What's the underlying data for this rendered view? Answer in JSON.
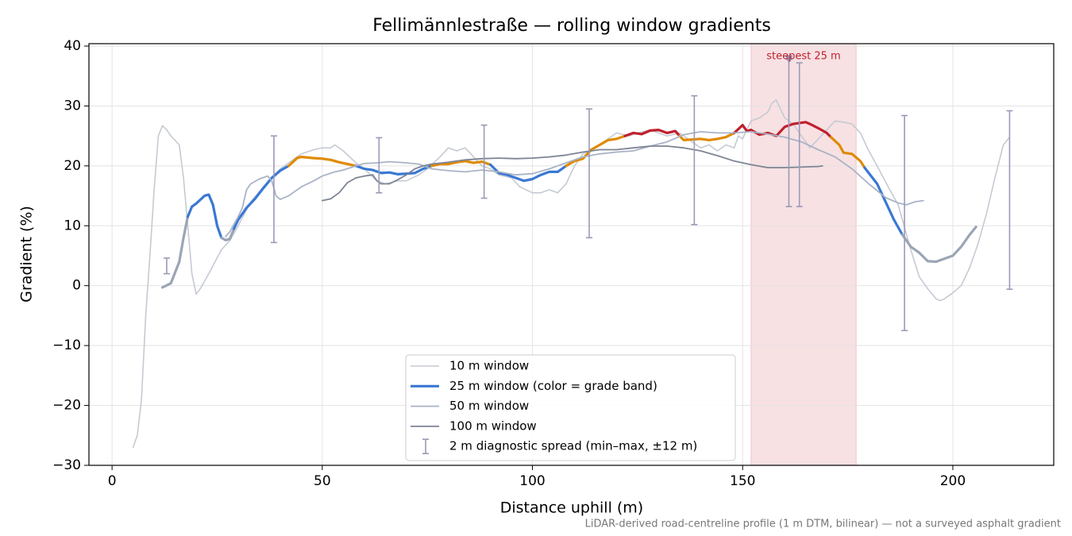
{
  "chart_data": {
    "type": "line",
    "title": "Fellimännlestraße — rolling window gradients",
    "x_label": "Distance uphill (m)",
    "y_label": "Gradient (%)",
    "footnote": "LiDAR-derived road-centreline profile (1 m DTM, bilinear) — not a surveyed asphalt gradient",
    "xlim": [
      -5.5,
      224
    ],
    "ylim": [
      -30,
      40.4
    ],
    "xticks": [
      0,
      50,
      100,
      150,
      200
    ],
    "yticks": [
      {
        "value": -30,
        "label": "−30"
      },
      {
        "value": -20,
        "label": "−20"
      },
      {
        "value": -10,
        "label": "−10"
      },
      0,
      10,
      20,
      30,
      40
    ],
    "grid": true,
    "legend": "lower center",
    "series": [
      {
        "name": "10 m window",
        "color": "#c5cad3",
        "x": [
          5,
          6,
          7,
          8,
          9,
          10,
          11,
          12,
          13,
          14,
          16,
          17,
          18,
          19,
          20,
          21,
          23,
          26,
          28,
          30,
          33,
          36,
          38,
          40,
          42,
          45,
          48,
          50,
          52,
          53,
          55,
          58,
          60,
          63,
          65,
          68,
          70,
          73,
          75,
          78,
          80,
          82,
          84,
          86,
          88,
          90,
          92,
          95,
          97,
          100,
          102,
          104,
          106,
          108,
          110,
          112,
          115,
          118,
          120,
          123,
          125,
          128,
          130,
          132,
          135,
          138,
          140,
          142,
          144,
          146,
          148,
          149,
          150,
          152,
          154,
          156,
          157,
          158,
          159,
          160,
          162,
          164,
          166,
          168,
          170,
          172,
          174,
          176,
          178,
          180,
          182,
          185,
          187,
          188,
          190,
          192,
          194,
          196,
          197,
          198,
          200,
          202,
          204,
          206,
          208,
          210,
          212,
          213.5
        ],
        "values": [
          -27,
          -25,
          -19,
          -5,
          5,
          16,
          25,
          26.7,
          26,
          25,
          23.5,
          18,
          10,
          2,
          -1.4,
          -0.5,
          2,
          6,
          7.5,
          10,
          14,
          16.5,
          18,
          19.5,
          20.5,
          22,
          22.7,
          23,
          23,
          23.5,
          22.5,
          20.5,
          19.5,
          17.5,
          17,
          17.5,
          17.5,
          18.5,
          19.5,
          21.5,
          23,
          22.5,
          23,
          21.5,
          20,
          19.5,
          18.5,
          18,
          16.5,
          15.5,
          15.5,
          16,
          15.5,
          17,
          20,
          22,
          23,
          24.5,
          25.5,
          25,
          25.5,
          26,
          25.5,
          25,
          25.5,
          24,
          23,
          23.5,
          22.5,
          23.5,
          23,
          25,
          24.5,
          27.5,
          28,
          29,
          30.5,
          31,
          29.5,
          28,
          27,
          25,
          23,
          24.5,
          26,
          27.5,
          27.3,
          27,
          25.5,
          22.5,
          20,
          16,
          13.5,
          11,
          6,
          1.5,
          -0.5,
          -2.2,
          -2.5,
          -2.2,
          -1.2,
          0,
          3,
          7,
          12,
          18,
          23.5,
          24.8
        ]
      },
      {
        "name": "25 m window (color = grade band)",
        "color": "#3a78d4",
        "x": [
          12,
          14,
          16,
          17,
          18,
          19,
          20,
          22,
          23,
          24,
          25,
          26,
          27,
          28,
          29,
          30,
          32,
          34,
          36,
          38,
          40,
          42,
          44,
          45,
          48,
          50,
          52,
          54,
          56,
          58,
          60,
          62,
          64,
          66,
          68,
          70,
          72,
          74,
          76,
          78,
          80,
          82,
          84,
          86,
          88,
          90,
          92,
          94,
          96,
          98,
          100,
          102,
          104,
          106,
          108,
          110,
          112,
          114,
          116,
          118,
          120,
          122,
          124,
          126,
          128,
          130,
          132,
          134,
          135,
          136,
          138,
          140,
          142,
          144,
          146,
          148,
          150,
          151,
          152,
          154,
          156,
          158,
          160,
          162,
          164,
          165,
          166,
          168,
          170,
          171,
          173,
          174,
          176,
          178,
          179,
          182,
          184,
          186,
          188,
          190,
          192,
          194,
          196,
          198,
          200,
          202,
          204,
          205.5
        ],
        "values": [
          -0.3,
          0.4,
          4,
          8,
          11.5,
          13.2,
          13.7,
          15,
          15.2,
          13.5,
          10,
          8,
          7.6,
          7.8,
          9.5,
          11,
          13,
          14.5,
          16.3,
          18,
          19.2,
          20,
          21.3,
          21.5,
          21.3,
          21.2,
          21,
          20.6,
          20.3,
          20,
          19.5,
          19.3,
          18.8,
          18.9,
          18.6,
          18.7,
          18.8,
          19.5,
          20,
          20.3,
          20.3,
          20.6,
          20.8,
          20.5,
          20.7,
          20.2,
          18.8,
          18.5,
          18,
          17.5,
          17.8,
          18.5,
          19,
          19,
          20,
          20.8,
          21.2,
          22.7,
          23.5,
          24.3,
          24.5,
          25,
          25.5,
          25.3,
          25.9,
          26,
          25.5,
          25.8,
          25,
          24.3,
          24.4,
          24.5,
          24.3,
          24.5,
          24.8,
          25.5,
          26.8,
          25.8,
          26,
          25.2,
          25.5,
          25,
          26.5,
          27,
          27.2,
          27.3,
          27,
          26.3,
          25.5,
          24.8,
          23.5,
          22.2,
          22,
          20.8,
          19.7,
          17,
          14,
          11,
          8.5,
          6.5,
          5.5,
          4.1,
          4,
          4.5,
          5,
          6.5,
          8.5,
          9.8
        ],
        "colors": [
          "#9aa5b5",
          "#9aa5b5",
          "#9aa5b5",
          "#9aa5b5",
          "#3a78d4",
          "#3a78d4",
          "#3a78d4",
          "#3a78d4",
          "#3a78d4",
          "#3a78d4",
          "#3a78d4",
          "#9aa5b5",
          "#9aa5b5",
          "#9aa5b5",
          "#3a78d4",
          "#3a78d4",
          "#3a78d4",
          "#3a78d4",
          "#3a78d4",
          "#3a78d4",
          "#3a78d4",
          "#e08a00",
          "#e08a00",
          "#e08a00",
          "#e08a00",
          "#e08a00",
          "#e08a00",
          "#e08a00",
          "#e08a00",
          "#3a78d4",
          "#3a78d4",
          "#3a78d4",
          "#3a78d4",
          "#3a78d4",
          "#3a78d4",
          "#3a78d4",
          "#3a78d4",
          "#3a78d4",
          "#e08a00",
          "#e08a00",
          "#e08a00",
          "#e08a00",
          "#e08a00",
          "#e08a00",
          "#e08a00",
          "#3a78d4",
          "#3a78d4",
          "#3a78d4",
          "#3a78d4",
          "#3a78d4",
          "#3a78d4",
          "#3a78d4",
          "#3a78d4",
          "#3a78d4",
          "#e08a00",
          "#e08a00",
          "#e08a00",
          "#e08a00",
          "#e08a00",
          "#e08a00",
          "#e08a00",
          "#c0202e",
          "#c0202e",
          "#c0202e",
          "#c0202e",
          "#c0202e",
          "#c0202e",
          "#c0202e",
          "#e08a00",
          "#e08a00",
          "#e08a00",
          "#e08a00",
          "#e08a00",
          "#e08a00",
          "#e08a00",
          "#c0202e",
          "#c0202e",
          "#c0202e",
          "#c0202e",
          "#c0202e",
          "#c0202e",
          "#c0202e",
          "#c0202e",
          "#c0202e",
          "#c0202e",
          "#c0202e",
          "#c0202e",
          "#c0202e",
          "#c0202e",
          "#e08a00",
          "#e08a00",
          "#e08a00",
          "#e08a00",
          "#e08a00",
          "#3a78d4",
          "#3a78d4",
          "#3a78d4",
          "#3a78d4",
          "#9aa5b5",
          "#9aa5b5",
          "#9aa5b5",
          "#9aa5b5",
          "#9aa5b5",
          "#9aa5b5",
          "#9aa5b5",
          "#9aa5b5",
          "#9aa5b5",
          "#9aa5b5"
        ]
      },
      {
        "name": "50 m window",
        "color": "#a9b3c6",
        "x": [
          27,
          28,
          30,
          31,
          32,
          33,
          35,
          37,
          38,
          39,
          40,
          42,
          45,
          48,
          50,
          53,
          55,
          58,
          60,
          63,
          66,
          70,
          73,
          76,
          80,
          84,
          88,
          92,
          96,
          100,
          104,
          108,
          112,
          116,
          120,
          124,
          128,
          132,
          136,
          140,
          144,
          148,
          152,
          156,
          160,
          164,
          168,
          172,
          176,
          180,
          184,
          187,
          189,
          191,
          193
        ],
        "values": [
          8.2,
          9,
          11.5,
          13,
          16,
          17,
          17.8,
          18.3,
          17.5,
          15,
          14.4,
          15,
          16.5,
          17.5,
          18.3,
          19,
          19.3,
          20,
          20.4,
          20.5,
          20.7,
          20.5,
          20.3,
          19.5,
          19.2,
          19,
          19.3,
          19,
          18.5,
          18.7,
          19.5,
          20.5,
          21.5,
          22,
          22.3,
          22.5,
          23.3,
          24,
          25.2,
          25.7,
          25.5,
          25.5,
          25.7,
          25.3,
          24.8,
          24,
          22.7,
          21.5,
          19.5,
          17,
          14.7,
          13.8,
          13.5,
          14,
          14.2
        ]
      },
      {
        "name": "100 m window",
        "color": "#7e8494",
        "x": [
          50,
          52,
          54,
          56,
          58,
          60,
          62,
          63,
          64,
          66,
          68,
          70,
          72,
          74,
          76,
          80,
          84,
          88,
          92,
          96,
          100,
          104,
          108,
          112,
          116,
          120,
          124,
          128,
          132,
          136,
          140,
          144,
          148,
          152,
          156,
          160,
          164,
          168,
          169
        ],
        "values": [
          14.2,
          14.5,
          15.5,
          17.2,
          18,
          18.3,
          18.5,
          17.5,
          17,
          17,
          17.7,
          18.5,
          19.5,
          20,
          20.3,
          20.6,
          21,
          21.2,
          21.3,
          21.2,
          21.3,
          21.5,
          21.8,
          22.3,
          22.7,
          22.7,
          23,
          23.3,
          23.3,
          23,
          22.5,
          21.7,
          20.8,
          20.2,
          19.7,
          19.7,
          19.8,
          19.9,
          20
        ]
      }
    ],
    "spread": {
      "name": "2 m diagnostic spread (min–max, ±12 m)",
      "color": "#9a9ab8",
      "x": [
        13,
        38.5,
        63.5,
        88.5,
        113.5,
        138.5,
        161,
        163.5,
        188.5,
        213.5
      ],
      "min": [
        2,
        7.2,
        15.5,
        14.6,
        8,
        10.2,
        13.2,
        13.2,
        -7.5,
        -0.6
      ],
      "max": [
        4.6,
        25,
        24.7,
        26.8,
        29.5,
        31.7,
        37.8,
        37.2,
        28.4,
        29.2
      ]
    },
    "highlight": {
      "x": [
        152,
        177
      ],
      "label": "steepest 25 m",
      "color": "#e8a9b0",
      "marker": {
        "x": 161,
        "y": 37.8
      }
    }
  }
}
